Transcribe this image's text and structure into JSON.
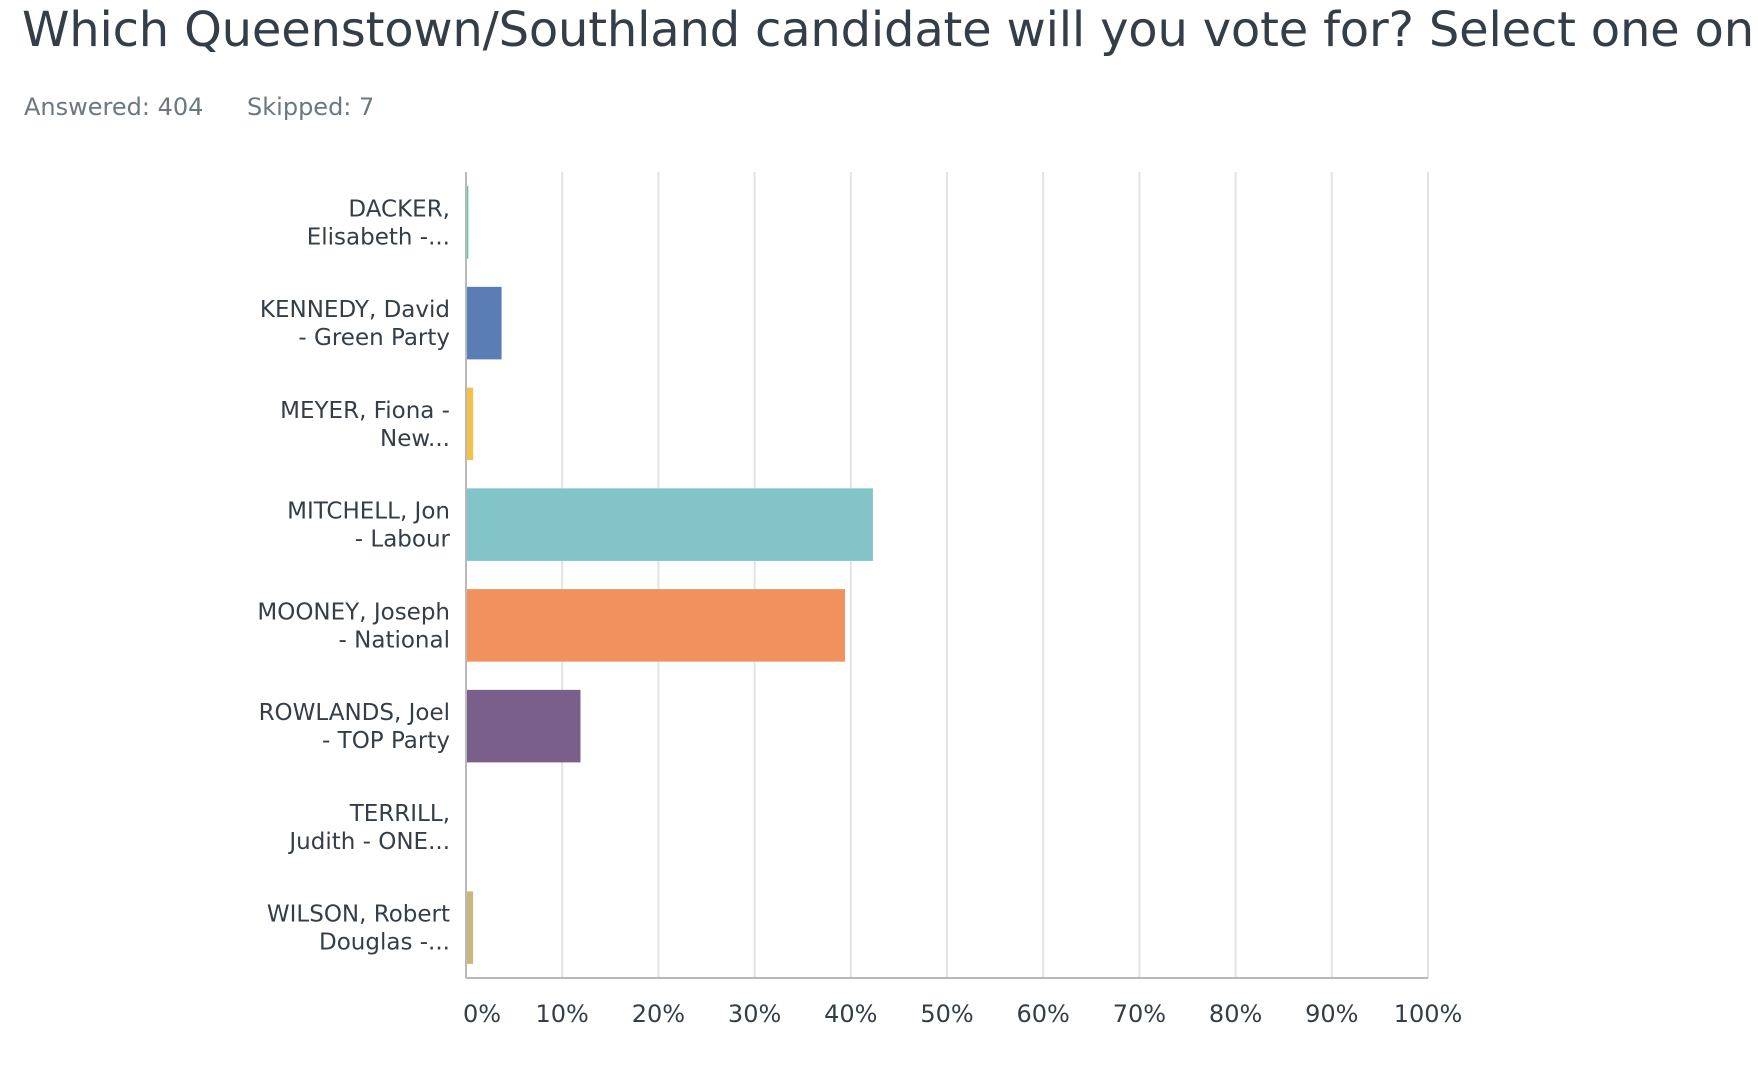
{
  "question": {
    "title": "Which Queenstown/Southland candidate will you vote for? Select one only.",
    "answered": "Answered: 404",
    "skipped": "Skipped: 7"
  },
  "chart_data": {
    "type": "bar",
    "orientation": "horizontal",
    "categories": [
      [
        "DACKER,",
        "Elisabeth -..."
      ],
      [
        "KENNEDY, David",
        "- Green Party"
      ],
      [
        "MEYER, Fiona -",
        "New..."
      ],
      [
        "MITCHELL, Jon",
        "- Labour"
      ],
      [
        "MOONEY, Joseph",
        "- National"
      ],
      [
        "ROWLANDS, Joel",
        "- TOP Party"
      ],
      [
        "TERRILL,",
        "Judith - ONE..."
      ],
      [
        "WILSON, Robert",
        "Douglas -..."
      ]
    ],
    "values": [
      0.25,
      3.7,
      0.74,
      42.3,
      39.4,
      11.9,
      0,
      0.74
    ],
    "colors": [
      "#6bc8a4",
      "#5a7db6",
      "#f1c14a",
      "#83c4c9",
      "#f0915e",
      "#7a5f8a",
      "#a6a6a6",
      "#c8b87a"
    ],
    "xlim": [
      0,
      100
    ],
    "xticks": [
      "0%",
      "10%",
      "20%",
      "30%",
      "40%",
      "50%",
      "60%",
      "70%",
      "80%",
      "90%",
      "100%"
    ],
    "grid": true,
    "legend": "none"
  }
}
